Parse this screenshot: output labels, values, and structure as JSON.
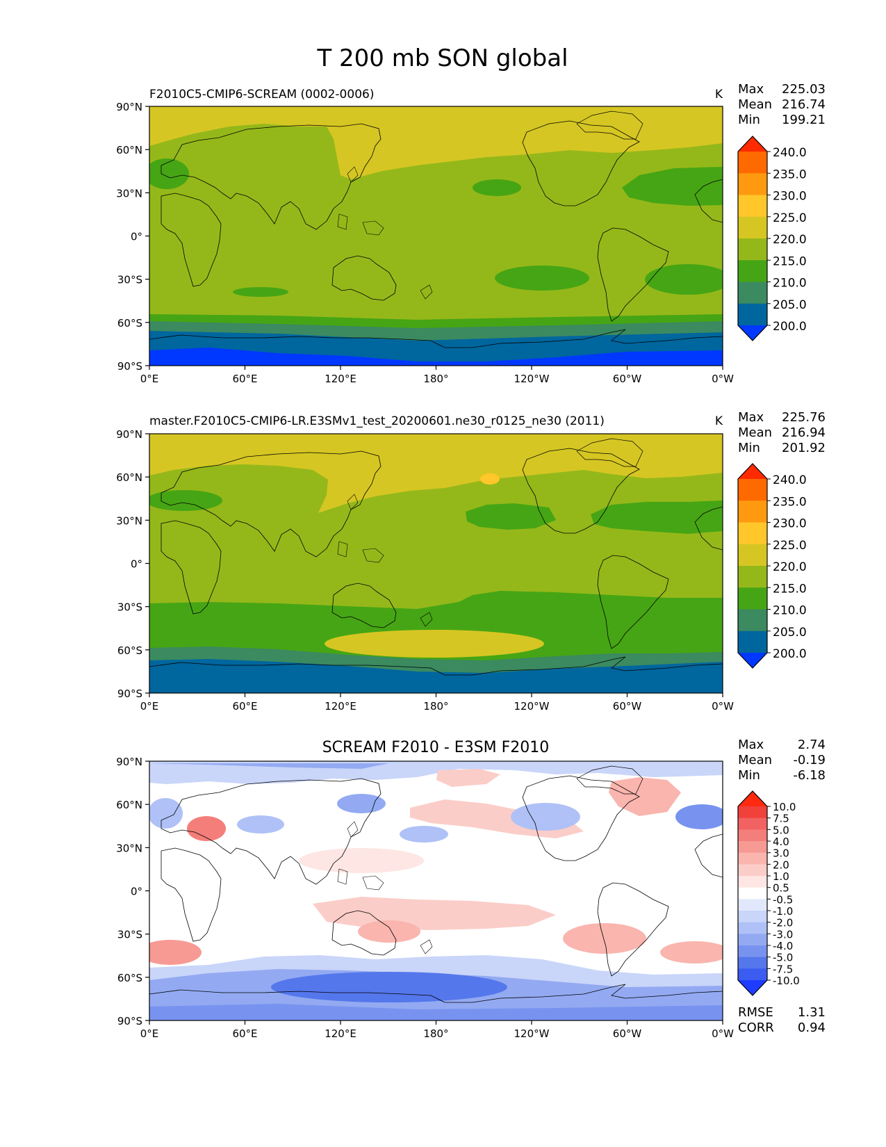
{
  "page": {
    "title": "T 200 mb SON global"
  },
  "axes": {
    "lat_ticks": [
      "90°N",
      "60°N",
      "30°N",
      "0°",
      "30°S",
      "60°S",
      "90°S"
    ],
    "lon_ticks": [
      "0°E",
      "60°E",
      "120°E",
      "180°",
      "120°W",
      "60°W",
      "0°W"
    ]
  },
  "panels": [
    {
      "id": "test",
      "title": "F2010C5-CMIP6-SCREAM (0002-0006)",
      "title_align": "left",
      "units": "K",
      "stats": [
        {
          "label": "Max",
          "value": "225.03"
        },
        {
          "label": "Mean",
          "value": "216.74"
        },
        {
          "label": "Min",
          "value": "199.21"
        }
      ],
      "colorbar": {
        "labels": [
          "240.0",
          "235.0",
          "230.0",
          "225.0",
          "220.0",
          "215.0",
          "210.0",
          "205.0",
          "200.0"
        ],
        "colors": [
          "#ff2a00",
          "#ff6a00",
          "#ff9a10",
          "#ffc72a",
          "#d6c623",
          "#94b81a",
          "#46a514",
          "#3b8a60",
          "#00669e",
          "#0038ff"
        ]
      },
      "bottom_stats": []
    },
    {
      "id": "ref",
      "title": "master.F2010C5-CMIP6-LR.E3SMv1_test_20200601.ne30_r0125_ne30 (2011)",
      "title_align": "left",
      "units": "K",
      "stats": [
        {
          "label": "Max",
          "value": "225.76"
        },
        {
          "label": "Mean",
          "value": "216.94"
        },
        {
          "label": "Min",
          "value": "201.92"
        }
      ],
      "colorbar": {
        "labels": [
          "240.0",
          "235.0",
          "230.0",
          "225.0",
          "220.0",
          "215.0",
          "210.0",
          "205.0",
          "200.0"
        ],
        "colors": [
          "#ff2a00",
          "#ff6a00",
          "#ff9a10",
          "#ffc72a",
          "#d6c623",
          "#94b81a",
          "#46a514",
          "#3b8a60",
          "#00669e",
          "#0038ff"
        ]
      },
      "bottom_stats": []
    },
    {
      "id": "diff",
      "title": "SCREAM F2010 - E3SM F2010",
      "title_align": "center",
      "units": "",
      "stats": [
        {
          "label": "Max",
          "value": "2.74"
        },
        {
          "label": "Mean",
          "value": "-0.19"
        },
        {
          "label": "Min",
          "value": "-6.18"
        }
      ],
      "colorbar": {
        "labels": [
          "10.0",
          "7.5",
          "5.0",
          "4.0",
          "3.0",
          "2.0",
          "1.0",
          "0.5",
          "-0.5",
          "-1.0",
          "-2.0",
          "-3.0",
          "-4.0",
          "-5.0",
          "-7.5",
          "-10.0"
        ],
        "colors": [
          "#ff2a10",
          "#f0413a",
          "#f26262",
          "#f47e7a",
          "#f79a94",
          "#f9b5ae",
          "#fbcdc8",
          "#fde6e3",
          "#ffffff",
          "#e2e8fb",
          "#c9d5f9",
          "#afc1f6",
          "#93aaf2",
          "#7893ef",
          "#5577ec",
          "#3a5cf0",
          "#1e3cff"
        ]
      },
      "bottom_stats": [
        {
          "label": "RMSE",
          "value": "1.31"
        },
        {
          "label": "CORR",
          "value": "0.94"
        }
      ]
    }
  ]
}
